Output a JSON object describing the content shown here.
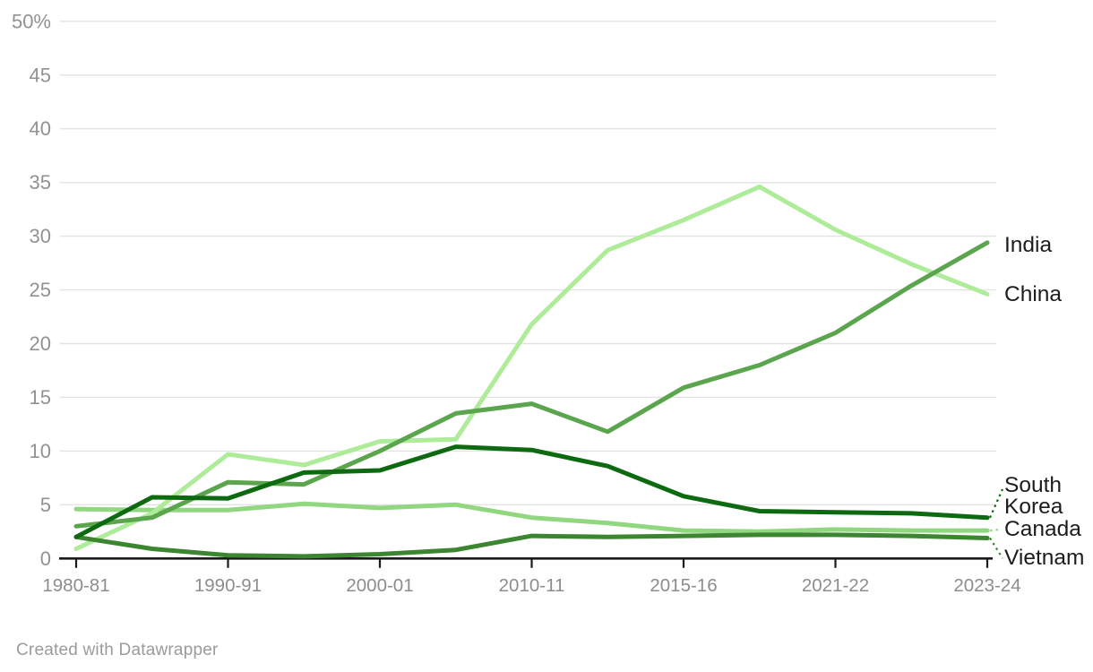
{
  "chart_data": {
    "type": "line",
    "unit": "percent",
    "categories": [
      "1980-81",
      "1985-86",
      "1990-91",
      "1995-96",
      "2000-01",
      "2005-06",
      "2010-11",
      "2012-13",
      "2015-16",
      "2019-20",
      "2021-22",
      "2022-23",
      "2023-24"
    ],
    "x_tick_indices": [
      0,
      2,
      4,
      6,
      8,
      10,
      12
    ],
    "x_tick_labels": [
      "1980-81",
      "1990-91",
      "2000-01",
      "2010-11",
      "2015-16",
      "2021-22",
      "2023-24"
    ],
    "ylim": [
      0,
      50
    ],
    "y_ticks": [
      0,
      5,
      10,
      15,
      20,
      25,
      30,
      35,
      40,
      45,
      50
    ],
    "y_tick_labels": [
      "0",
      "5",
      "10",
      "15",
      "20",
      "25",
      "30",
      "35",
      "40",
      "45",
      "50%"
    ],
    "grid": true,
    "legend_position": "right-edge-labels",
    "series": [
      {
        "name": "Canada",
        "color": "#90d77f",
        "label_lines": [
          "Canada"
        ],
        "values": [
          4.6,
          4.5,
          4.5,
          5.1,
          4.7,
          5.0,
          3.8,
          3.3,
          2.6,
          2.5,
          2.7,
          2.6,
          2.6
        ]
      },
      {
        "name": "China",
        "color": "#aeec9a",
        "label_lines": [
          "China"
        ],
        "values": [
          0.9,
          4.2,
          9.7,
          8.7,
          10.9,
          11.1,
          21.8,
          28.7,
          31.5,
          34.6,
          30.6,
          27.4,
          24.6
        ]
      },
      {
        "name": "Vietnam",
        "color": "#3c8531",
        "label_lines": [
          "Vietnam"
        ],
        "values": [
          2.0,
          0.9,
          0.3,
          0.2,
          0.4,
          0.8,
          2.1,
          2.0,
          2.1,
          2.2,
          2.2,
          2.1,
          1.9
        ]
      },
      {
        "name": "India",
        "color": "#5ba54e",
        "label_lines": [
          "India"
        ],
        "values": [
          3.0,
          3.8,
          7.1,
          6.9,
          10.0,
          13.5,
          14.4,
          11.8,
          15.9,
          18.0,
          21.0,
          25.4,
          29.4
        ]
      },
      {
        "name": "South Korea",
        "color": "#0d6a10",
        "label_lines": [
          "South",
          "Korea"
        ],
        "values": [
          2.0,
          5.7,
          5.6,
          8.0,
          8.2,
          10.4,
          10.1,
          8.6,
          5.8,
          4.4,
          4.3,
          4.2,
          3.8
        ]
      }
    ],
    "colors": {
      "axis": "#1a1a1a",
      "gridline": "#e3e3e3",
      "y_label": "#929292",
      "x_label": "#8d8d8d",
      "series_label": "#1d1d1d"
    }
  },
  "footer": {
    "credit": "Created with Datawrapper"
  }
}
